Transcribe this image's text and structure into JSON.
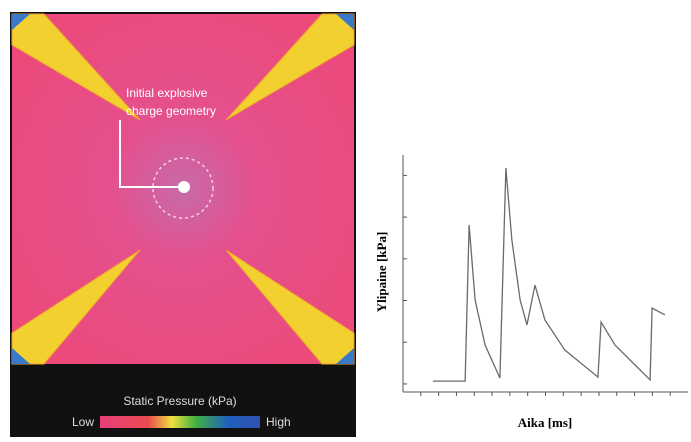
{
  "simulation": {
    "annotation": [
      "Initial explosive",
      "charge geometry"
    ],
    "colorbar_title": "Static Pressure (kPa)",
    "low_label": "Low",
    "high_label": "High"
  },
  "chart_data": {
    "type": "line",
    "xlabel": "Aika [ms]",
    "ylabel": "Ylipaine [kPa]",
    "color": "#6a6a6a",
    "x": [
      10.5,
      21.8,
      23.2,
      25.3,
      28.8,
      34.0,
      36.1,
      38.2,
      41.1,
      43.5,
      46.3,
      49.8,
      56.8,
      68.4,
      69.5,
      74.4,
      86.7,
      87.4,
      91.9
    ],
    "values": [
      4.6,
      4.6,
      70.5,
      38.8,
      19.8,
      5.9,
      94.5,
      64.1,
      38.8,
      28.3,
      45.1,
      30.4,
      17.7,
      6.3,
      29.5,
      19.8,
      5.1,
      35.4,
      32.5
    ],
    "xlim": [
      0,
      100
    ],
    "ylim": [
      0,
      100
    ],
    "xticks": [
      6.25,
      12.5,
      18.75,
      25,
      31.25,
      37.5,
      43.75,
      50,
      56.25,
      62.5,
      68.75,
      75,
      81.25,
      87.5,
      93.75
    ],
    "yticks": [
      3.4,
      21,
      38.6,
      56.2,
      73.8,
      91.4
    ]
  }
}
